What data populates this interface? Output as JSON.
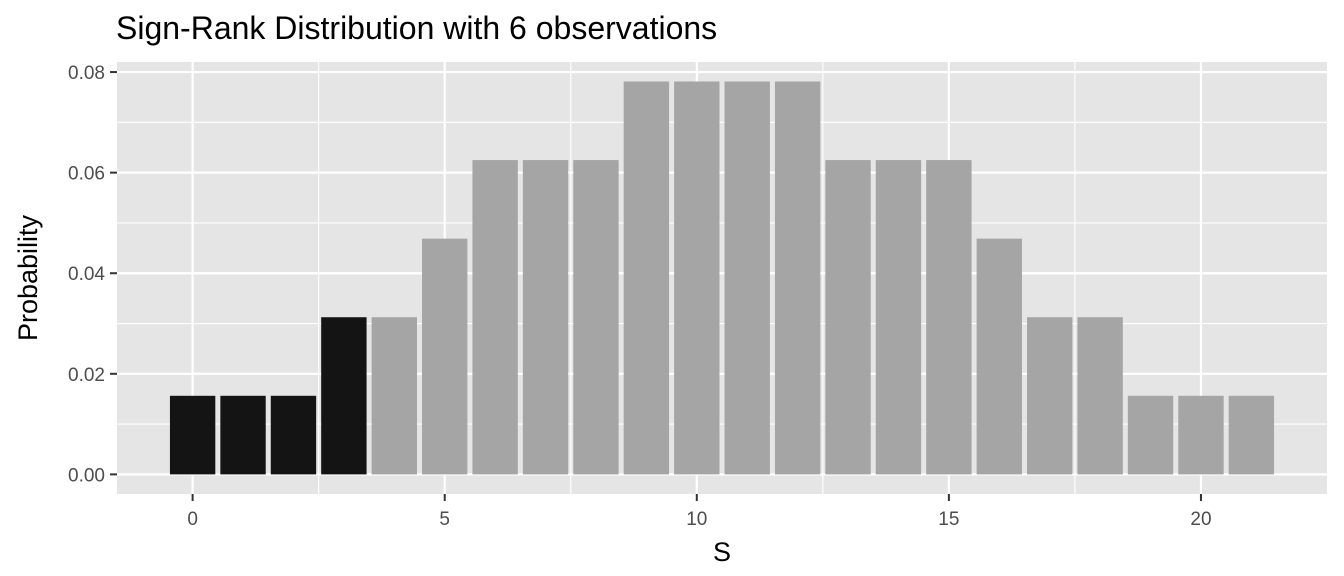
{
  "chart_data": {
    "type": "bar",
    "title": "Sign-Rank Distribution with 6 observations",
    "xlabel": "S",
    "ylabel": "Probability",
    "x": [
      0,
      1,
      2,
      3,
      4,
      5,
      6,
      7,
      8,
      9,
      10,
      11,
      12,
      13,
      14,
      15,
      16,
      17,
      18,
      19,
      20,
      21
    ],
    "values": [
      0.015625,
      0.015625,
      0.015625,
      0.03125,
      0.03125,
      0.046875,
      0.0625,
      0.0625,
      0.0625,
      0.078125,
      0.078125,
      0.078125,
      0.078125,
      0.0625,
      0.0625,
      0.0625,
      0.046875,
      0.03125,
      0.03125,
      0.015625,
      0.015625,
      0.015625
    ],
    "highlighted_x": [
      0,
      1,
      2,
      3
    ],
    "highlight_color": "#141414",
    "bar_color": "#a5a5a5",
    "panel_background": "#e5e5e5",
    "grid_color": "#ffffff",
    "grid": true,
    "xlim": [
      -1.5,
      22.5
    ],
    "ylim": [
      -0.0039,
      0.082
    ],
    "x_ticks": [
      0,
      5,
      10,
      15,
      20
    ],
    "x_tick_labels": [
      "0",
      "5",
      "10",
      "15",
      "20"
    ],
    "y_ticks": [
      0,
      0.02,
      0.04,
      0.06,
      0.08
    ],
    "y_tick_labels": [
      "0.00",
      "0.02",
      "0.04",
      "0.06",
      "0.08"
    ],
    "legend": "none"
  }
}
